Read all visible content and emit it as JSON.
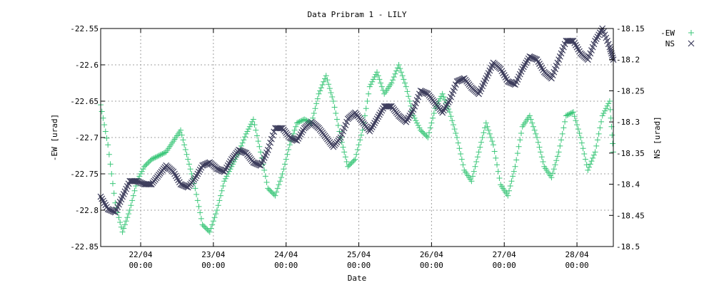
{
  "chart_data": {
    "type": "scatter",
    "title": "Data Pribram 1 - LILY",
    "xlabel": "Date",
    "ylabel_left": "-EW [urad]",
    "ylabel_right": "NS [urad]",
    "x_range_days": [
      21.45,
      28.5
    ],
    "y_left_range": [
      -22.85,
      -22.55
    ],
    "y_right_range": [
      -18.5,
      -18.15
    ],
    "y_left_ticks": [
      "-22.55",
      "-22.6",
      "-22.65",
      "-22.7",
      "-22.75",
      "-22.8",
      "-22.85"
    ],
    "y_left_tick_values": [
      -22.55,
      -22.6,
      -22.65,
      -22.7,
      -22.75,
      -22.8,
      -22.85
    ],
    "y_right_ticks": [
      "-18.15",
      "-18.2",
      "-18.25",
      "-18.3",
      "-18.35",
      "-18.4",
      "-18.45",
      "-18.5"
    ],
    "y_right_tick_values": [
      -18.15,
      -18.2,
      -18.25,
      -18.3,
      -18.35,
      -18.4,
      -18.45,
      -18.5
    ],
    "x_ticks": [
      {
        "day": 22,
        "date": "22/04",
        "time": "00:00"
      },
      {
        "day": 23,
        "date": "23/04",
        "time": "00:00"
      },
      {
        "day": 24,
        "date": "24/04",
        "time": "00:00"
      },
      {
        "day": 25,
        "date": "25/04",
        "time": "00:00"
      },
      {
        "day": 26,
        "date": "26/04",
        "time": "00:00"
      },
      {
        "day": 27,
        "date": "27/04",
        "time": "00:00"
      },
      {
        "day": 28,
        "date": "28/04",
        "time": "00:00"
      }
    ],
    "grid": true,
    "legend_position": "top-right",
    "series": [
      {
        "name": "-EW",
        "axis": "left",
        "marker": "+",
        "color": "#3cc77a",
        "x": [
          21.45,
          21.55,
          21.65,
          21.75,
          21.85,
          21.95,
          22.05,
          22.15,
          22.25,
          22.35,
          22.45,
          22.55,
          22.65,
          22.75,
          22.85,
          22.95,
          23.05,
          23.15,
          23.25,
          23.35,
          23.45,
          23.55,
          23.65,
          23.75,
          23.85,
          23.95,
          24.05,
          24.15,
          24.25,
          24.35,
          24.45,
          24.55,
          24.65,
          24.75,
          24.85,
          24.95,
          25.05,
          25.15,
          25.25,
          25.35,
          25.45,
          25.55,
          25.65,
          25.75,
          25.85,
          25.95,
          26.05,
          26.15,
          26.25,
          26.35,
          26.45,
          26.55,
          26.65,
          26.75,
          26.85,
          26.95,
          27.05,
          27.15,
          27.25,
          27.35,
          27.45,
          27.55,
          27.65,
          27.75,
          27.85,
          27.95,
          28.05,
          28.15,
          28.25,
          28.35,
          28.45,
          28.5
        ],
        "y": [
          -22.655,
          -22.71,
          -22.79,
          -22.83,
          -22.8,
          -22.76,
          -22.74,
          -22.73,
          -22.725,
          -22.72,
          -22.705,
          -22.69,
          -22.73,
          -22.77,
          -22.82,
          -22.83,
          -22.8,
          -22.76,
          -22.74,
          -22.72,
          -22.695,
          -22.675,
          -22.72,
          -22.77,
          -22.78,
          -22.75,
          -22.71,
          -22.68,
          -22.675,
          -22.68,
          -22.64,
          -22.615,
          -22.65,
          -22.7,
          -22.74,
          -22.73,
          -22.69,
          -22.63,
          -22.61,
          -22.64,
          -22.625,
          -22.6,
          -22.63,
          -22.67,
          -22.69,
          -22.7,
          -22.66,
          -22.64,
          -22.665,
          -22.7,
          -22.745,
          -22.76,
          -22.72,
          -22.68,
          -22.71,
          -22.765,
          -22.78,
          -22.74,
          -22.685,
          -22.67,
          -22.7,
          -22.74,
          -22.755,
          -22.72,
          -22.67,
          -22.665,
          -22.7,
          -22.745,
          -22.72,
          -22.67,
          -22.65,
          -22.72
        ]
      },
      {
        "name": "NS",
        "axis": "right",
        "marker": "x",
        "color": "#3d3d5c",
        "x": [
          21.45,
          21.55,
          21.65,
          21.75,
          21.85,
          21.95,
          22.05,
          22.15,
          22.25,
          22.35,
          22.45,
          22.55,
          22.65,
          22.75,
          22.85,
          22.95,
          23.05,
          23.15,
          23.25,
          23.35,
          23.45,
          23.55,
          23.65,
          23.75,
          23.85,
          23.95,
          24.05,
          24.15,
          24.25,
          24.35,
          24.45,
          24.55,
          24.65,
          24.75,
          24.85,
          24.95,
          25.05,
          25.15,
          25.25,
          25.35,
          25.45,
          25.55,
          25.65,
          25.75,
          25.85,
          25.95,
          26.05,
          26.15,
          26.25,
          26.35,
          26.45,
          26.55,
          26.65,
          26.75,
          26.85,
          26.95,
          27.05,
          27.15,
          27.25,
          27.35,
          27.45,
          27.55,
          27.65,
          27.75,
          27.85,
          27.95,
          28.05,
          28.15,
          28.25,
          28.35,
          28.45,
          28.5
        ],
        "y": [
          -18.42,
          -18.44,
          -18.445,
          -18.42,
          -18.395,
          -18.395,
          -18.4,
          -18.4,
          -18.385,
          -18.37,
          -18.38,
          -18.4,
          -18.405,
          -18.39,
          -18.37,
          -18.365,
          -18.375,
          -18.38,
          -18.36,
          -18.345,
          -18.35,
          -18.365,
          -18.37,
          -18.345,
          -18.31,
          -18.31,
          -18.325,
          -18.33,
          -18.31,
          -18.3,
          -18.31,
          -18.325,
          -18.34,
          -18.325,
          -18.295,
          -18.285,
          -18.3,
          -18.315,
          -18.295,
          -18.275,
          -18.275,
          -18.29,
          -18.3,
          -18.28,
          -18.25,
          -18.255,
          -18.27,
          -18.285,
          -18.265,
          -18.235,
          -18.23,
          -18.245,
          -18.255,
          -18.23,
          -18.205,
          -18.215,
          -18.235,
          -18.24,
          -18.215,
          -18.195,
          -18.2,
          -18.22,
          -18.23,
          -18.2,
          -18.17,
          -18.17,
          -18.19,
          -18.2,
          -18.17,
          -18.15,
          -18.18,
          -18.2
        ]
      }
    ]
  }
}
